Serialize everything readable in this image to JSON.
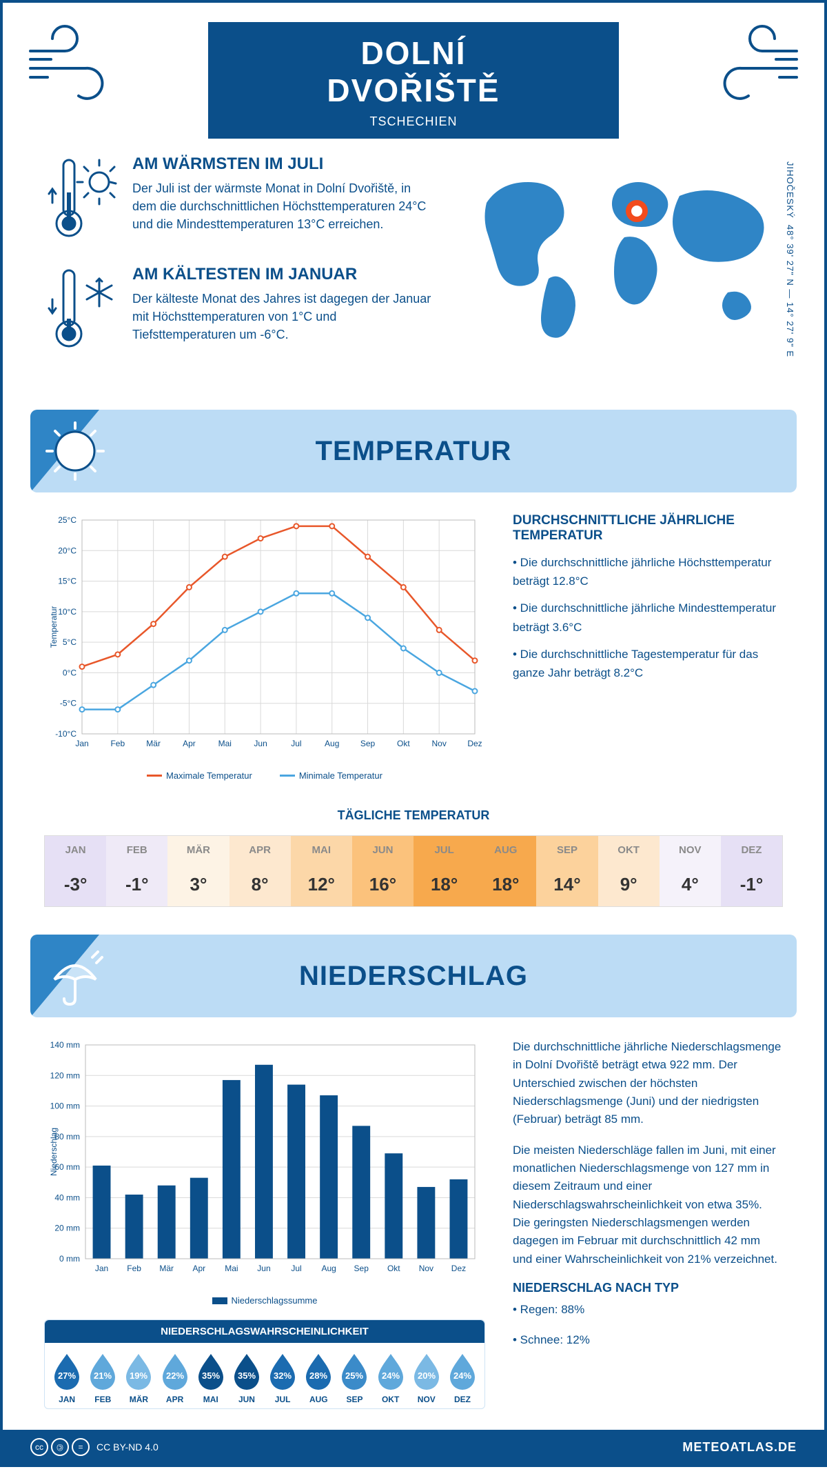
{
  "colors": {
    "primary": "#0b4f8a",
    "banner_bg": "#bcdcf5",
    "banner_tri": "#2f85c6",
    "max_line": "#e8572a",
    "min_line": "#4aa6e0",
    "bar": "#0b4f8a",
    "grid": "#d9d9d9",
    "marker": "#f24b1d"
  },
  "header": {
    "title": "DOLNÍ DVOŘIŠTĚ",
    "subtitle": "TSCHECHIEN"
  },
  "intro": {
    "warm": {
      "title": "AM WÄRMSTEN IM JULI",
      "text": "Der Juli ist der wärmste Monat in Dolní Dvořiště, in dem die durchschnittlichen Höchsttemperaturen 24°C und die Mindesttemperaturen 13°C erreichen."
    },
    "cold": {
      "title": "AM KÄLTESTEN IM JANUAR",
      "text": "Der kälteste Monat des Jahres ist dagegen der Januar mit Höchsttemperaturen von 1°C und Tiefsttemperaturen um -6°C."
    },
    "region": "JIHOČESKÝ",
    "coords": "48° 39' 27\" N — 14° 27' 9\" E"
  },
  "sections": {
    "temperature": "TEMPERATUR",
    "precipitation": "NIEDERSCHLAG"
  },
  "months": [
    "Jan",
    "Feb",
    "Mär",
    "Apr",
    "Mai",
    "Jun",
    "Jul",
    "Aug",
    "Sep",
    "Okt",
    "Nov",
    "Dez"
  ],
  "months_upper": [
    "JAN",
    "FEB",
    "MÄR",
    "APR",
    "MAI",
    "JUN",
    "JUL",
    "AUG",
    "SEP",
    "OKT",
    "NOV",
    "DEZ"
  ],
  "temp_chart": {
    "y_label": "Temperatur",
    "y_min": -10,
    "y_max": 25,
    "y_step": 5,
    "max_series": [
      1,
      3,
      8,
      14,
      19,
      22,
      24,
      24,
      19,
      14,
      7,
      2
    ],
    "min_series": [
      -6,
      -6,
      -2,
      2,
      7,
      10,
      13,
      13,
      9,
      4,
      0,
      -3
    ],
    "legend_max": "Maximale Temperatur",
    "legend_min": "Minimale Temperatur"
  },
  "temp_info": {
    "title": "DURCHSCHNITTLICHE JÄHRLICHE TEMPERATUR",
    "b1": "• Die durchschnittliche jährliche Höchsttemperatur beträgt 12.8°C",
    "b2": "• Die durchschnittliche jährliche Mindesttemperatur beträgt 3.6°C",
    "b3": "• Die durchschnittliche Tagestemperatur für das ganze Jahr beträgt 8.2°C"
  },
  "daily": {
    "title": "TÄGLICHE TEMPERATUR",
    "values": [
      "-3°",
      "-1°",
      "3°",
      "8°",
      "12°",
      "16°",
      "18°",
      "18°",
      "14°",
      "9°",
      "4°",
      "-1°"
    ],
    "bg": [
      "#e6e0f5",
      "#efeaf7",
      "#fdf3e5",
      "#fde8cf",
      "#fcd7a8",
      "#fbc27c",
      "#f7a94d",
      "#f7a94d",
      "#fcd29c",
      "#fde8cf",
      "#f5f2fa",
      "#e6e0f5"
    ],
    "header_color": "#8a8a8a"
  },
  "precip_chart": {
    "y_label": "Niederschlag",
    "y_max": 140,
    "y_step": 20,
    "values": [
      61,
      42,
      48,
      53,
      117,
      127,
      114,
      107,
      87,
      69,
      47,
      52
    ],
    "legend": "Niederschlagssumme"
  },
  "precip_text": {
    "p1": "Die durchschnittliche jährliche Niederschlagsmenge in Dolní Dvořiště beträgt etwa 922 mm. Der Unterschied zwischen der höchsten Niederschlagsmenge (Juni) und der niedrigsten (Februar) beträgt 85 mm.",
    "p2": "Die meisten Niederschläge fallen im Juni, mit einer monatlichen Niederschlagsmenge von 127 mm in diesem Zeitraum und einer Niederschlagswahrscheinlichkeit von etwa 35%. Die geringsten Niederschlagsmengen werden dagegen im Februar mit durchschnittlich 42 mm und einer Wahrscheinlichkeit von 21% verzeichnet.",
    "type_title": "NIEDERSCHLAG NACH TYP",
    "type_1": "• Regen: 88%",
    "type_2": "• Schnee: 12%"
  },
  "prob": {
    "title": "NIEDERSCHLAGSWAHRSCHEINLICHKEIT",
    "values": [
      27,
      21,
      19,
      22,
      35,
      35,
      32,
      28,
      25,
      24,
      20,
      24
    ],
    "colors": [
      "#1b6bb0",
      "#5fa8db",
      "#7bb9e4",
      "#5fa8db",
      "#0b4f8a",
      "#0b4f8a",
      "#1b6bb0",
      "#1b6bb0",
      "#3b8bc9",
      "#5fa8db",
      "#7bb9e4",
      "#5fa8db"
    ]
  },
  "footer": {
    "license": "CC BY-ND 4.0",
    "brand": "METEOATLAS.DE"
  }
}
